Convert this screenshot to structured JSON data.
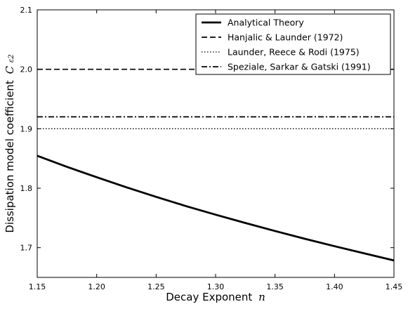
{
  "chart_data": {
    "type": "line",
    "xlabel": "Decay Exponent",
    "xlabel_symbol": "n",
    "ylabel": "Dissipation model coefficient",
    "ylabel_symbol": "C",
    "ylabel_subscript": "ε2",
    "xlim": [
      1.15,
      1.45
    ],
    "ylim": [
      1.65,
      2.1
    ],
    "x_ticks": [
      "1.15",
      "1.20",
      "1.25",
      "1.30",
      "1.35",
      "1.40",
      "1.45"
    ],
    "y_ticks": [
      "1.7",
      "1.8",
      "1.9",
      "2.0",
      "2.1"
    ],
    "grid": false,
    "legend_position": "top-right",
    "series": [
      {
        "name": "Analytical Theory",
        "style": "solid-thick",
        "color": "#000000",
        "x": [
          1.15,
          1.175,
          1.2,
          1.225,
          1.25,
          1.275,
          1.3,
          1.325,
          1.35,
          1.375,
          1.4,
          1.425,
          1.45
        ],
        "y": [
          1.8545,
          1.836,
          1.8185,
          1.8015,
          1.7855,
          1.77,
          1.7555,
          1.7415,
          1.728,
          1.715,
          1.7025,
          1.6905,
          1.6785
        ]
      },
      {
        "name": "Hanjalic & Launder (1972)",
        "style": "dashed",
        "color": "#000000",
        "x": [
          1.15,
          1.45
        ],
        "y": [
          2.0,
          2.0
        ]
      },
      {
        "name": "Launder, Reece & Rodi (1975)",
        "style": "dotted",
        "color": "#000000",
        "x": [
          1.15,
          1.45
        ],
        "y": [
          1.9,
          1.9
        ]
      },
      {
        "name": "Speziale, Sarkar & Gatski (1991)",
        "style": "dashdot",
        "color": "#000000",
        "x": [
          1.15,
          1.45
        ],
        "y": [
          1.92,
          1.92
        ]
      }
    ]
  }
}
